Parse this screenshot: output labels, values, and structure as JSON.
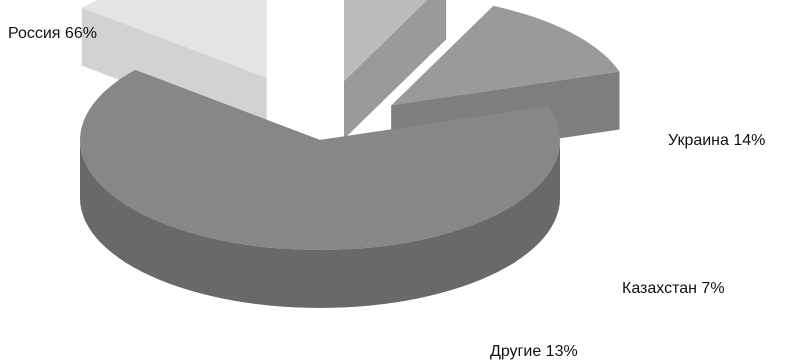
{
  "chart_data": {
    "type": "pie",
    "style": "3d-exploded",
    "title": "",
    "slices": [
      {
        "name": "Россия",
        "value": 66,
        "label": "Россия 66%",
        "color": "#878787"
      },
      {
        "name": "Украина",
        "value": 14,
        "label": "Украина 14%",
        "color": "#e4e4e4"
      },
      {
        "name": "Казахстан",
        "value": 7,
        "label": "Казахстан 7%",
        "color": "#bcbcbc"
      },
      {
        "name": "Другие",
        "value": 13,
        "label": "Другие 13%",
        "color": "#9a9a9a"
      }
    ]
  }
}
